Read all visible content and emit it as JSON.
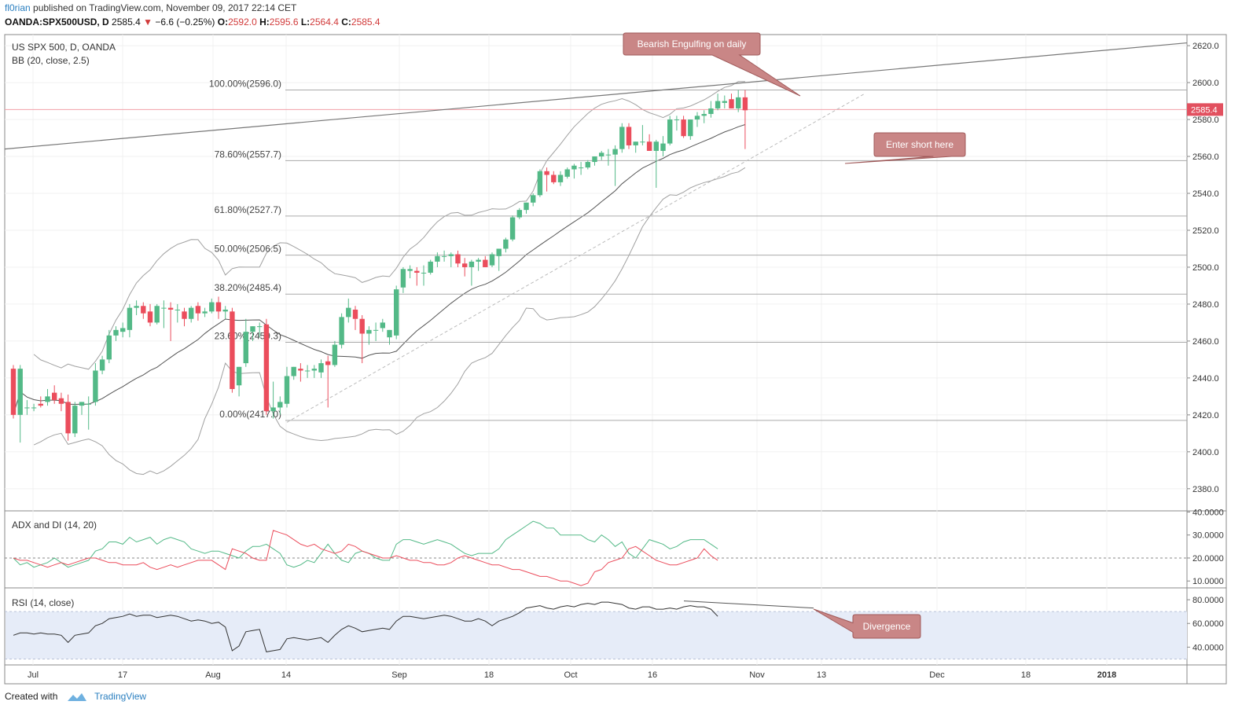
{
  "header": {
    "author": "fl0rian",
    "published_text": "published on TradingView.com, November 09, 2017 22:14 CET"
  },
  "symbol_line": {
    "symbol": "OANDA:SPX500USD, D",
    "last": "2585.4",
    "change": "−6.6 (−0.25%)",
    "o_label": "O:",
    "o": "2592.0",
    "h_label": "H:",
    "h": "2595.6",
    "l_label": "L:",
    "l": "2564.4",
    "c_label": "C:",
    "c": "2585.4"
  },
  "footer": {
    "created_with": "Created with",
    "brand": "TradingView"
  },
  "colors": {
    "bull": "#53b987",
    "bear": "#eb4d5c",
    "bb": "#a0a0a0",
    "basis": "#555555",
    "fib": "#aaaaaa",
    "callout": "#c98686",
    "adx": "#eb4d5c",
    "di": "#53b987",
    "rsi": "#333333",
    "rsi_band": "#e6ecf8"
  },
  "chart_data": [
    {
      "type": "candlestick",
      "title": "US SPX 500, D, OANDA",
      "indicator_label": "BB (20, close, 2.5)",
      "x_tick_labels": [
        "Jul",
        "17",
        "Aug",
        "14",
        "Sep",
        "18",
        "Oct",
        "16",
        "Nov",
        "13",
        "Dec",
        "18",
        "2018"
      ],
      "y_tick_labels": [
        "2620.0",
        "2600.0",
        "2580.0",
        "2560.0",
        "2540.0",
        "2520.0",
        "2500.0",
        "2480.0",
        "2460.0",
        "2440.0",
        "2420.0",
        "2400.0",
        "2380.0"
      ],
      "ylim": [
        2368,
        2626
      ],
      "last_price_label": "2585.4",
      "candles": [
        [
          2445,
          2447,
          2418,
          2420
        ],
        [
          2420,
          2447,
          2405,
          2445
        ],
        [
          2424,
          2428,
          2420,
          2424
        ],
        [
          2424,
          2426,
          2422,
          2424
        ],
        [
          2426,
          2430,
          2424,
          2425
        ],
        [
          2427,
          2434,
          2425,
          2430
        ],
        [
          2432,
          2436,
          2426,
          2428
        ],
        [
          2429,
          2432,
          2422,
          2426
        ],
        [
          2427,
          2431,
          2406,
          2410
        ],
        [
          2410,
          2427,
          2408,
          2425
        ],
        [
          2425,
          2427,
          2420,
          2427
        ],
        [
          2426,
          2430,
          2412,
          2426
        ],
        [
          2427,
          2448,
          2425,
          2444
        ],
        [
          2444,
          2452,
          2442,
          2450
        ],
        [
          2450,
          2466,
          2448,
          2463
        ],
        [
          2463,
          2468,
          2460,
          2466
        ],
        [
          2465,
          2470,
          2462,
          2467
        ],
        [
          2466,
          2480,
          2462,
          2478
        ],
        [
          2478,
          2482,
          2474,
          2479
        ],
        [
          2479,
          2481,
          2472,
          2475
        ],
        [
          2476,
          2480,
          2468,
          2470
        ],
        [
          2470,
          2480,
          2469,
          2479
        ],
        [
          2478,
          2482,
          2467,
          2478
        ],
        [
          2478,
          2481,
          2460,
          2477
        ],
        [
          2477,
          2480,
          2470,
          2477
        ],
        [
          2476,
          2478,
          2468,
          2472
        ],
        [
          2472,
          2479,
          2470,
          2478
        ],
        [
          2479,
          2481,
          2471,
          2475
        ],
        [
          2475,
          2478,
          2473,
          2476
        ],
        [
          2476,
          2483,
          2475,
          2481
        ],
        [
          2481,
          2484,
          2472,
          2476
        ],
        [
          2476,
          2479,
          2472,
          2477
        ],
        [
          2476,
          2478,
          2432,
          2434
        ],
        [
          2436,
          2446,
          2430,
          2446
        ],
        [
          2448,
          2472,
          2446,
          2465
        ],
        [
          2465,
          2468,
          2460,
          2468
        ],
        [
          2468,
          2470,
          2462,
          2468
        ],
        [
          2469,
          2472,
          2420,
          2422
        ],
        [
          2422,
          2438,
          2418,
          2424
        ],
        [
          2424,
          2430,
          2420,
          2427
        ],
        [
          2426,
          2446,
          2424,
          2441
        ],
        [
          2441,
          2446,
          2439,
          2446
        ],
        [
          2445,
          2448,
          2438,
          2444
        ],
        [
          2444,
          2447,
          2440,
          2444
        ],
        [
          2444,
          2447,
          2440,
          2445
        ],
        [
          2443,
          2450,
          2440,
          2448
        ],
        [
          2449,
          2452,
          2424,
          2447
        ],
        [
          2447,
          2460,
          2446,
          2458
        ],
        [
          2458,
          2475,
          2456,
          2473
        ],
        [
          2473,
          2483,
          2470,
          2478
        ],
        [
          2477,
          2479,
          2466,
          2472
        ],
        [
          2472,
          2474,
          2448,
          2464
        ],
        [
          2464,
          2468,
          2458,
          2466
        ],
        [
          2466,
          2470,
          2460,
          2466
        ],
        [
          2467,
          2472,
          2465,
          2470
        ],
        [
          2462,
          2466,
          2458,
          2466
        ],
        [
          2463,
          2490,
          2461,
          2488
        ],
        [
          2489,
          2500,
          2486,
          2499
        ],
        [
          2498,
          2501,
          2494,
          2499
        ],
        [
          2498,
          2500,
          2490,
          2497
        ],
        [
          2497,
          2501,
          2490,
          2497
        ],
        [
          2497,
          2504,
          2496,
          2503
        ],
        [
          2503,
          2508,
          2500,
          2506
        ],
        [
          2506,
          2509,
          2503,
          2506
        ],
        [
          2506,
          2508,
          2500,
          2507
        ],
        [
          2507,
          2509,
          2500,
          2502
        ],
        [
          2502,
          2505,
          2495,
          2500
        ],
        [
          2500,
          2504,
          2490,
          2503
        ],
        [
          2503,
          2505,
          2498,
          2504
        ],
        [
          2504,
          2506,
          2500,
          2500
        ],
        [
          2501,
          2508,
          2500,
          2507
        ],
        [
          2506,
          2510,
          2498,
          2510
        ],
        [
          2510,
          2516,
          2508,
          2515
        ],
        [
          2515,
          2528,
          2514,
          2527
        ],
        [
          2527,
          2532,
          2526,
          2531
        ],
        [
          2531,
          2535,
          2529,
          2535
        ],
        [
          2535,
          2540,
          2533,
          2539
        ],
        [
          2539,
          2553,
          2538,
          2552
        ],
        [
          2552,
          2554,
          2541,
          2550
        ],
        [
          2550,
          2552,
          2545,
          2546
        ],
        [
          2546,
          2552,
          2544,
          2550
        ],
        [
          2549,
          2554,
          2548,
          2553
        ],
        [
          2553,
          2556,
          2548,
          2555
        ],
        [
          2554,
          2557,
          2550,
          2554
        ],
        [
          2554,
          2558,
          2553,
          2557
        ],
        [
          2557,
          2560,
          2555,
          2560
        ],
        [
          2560,
          2563,
          2558,
          2562
        ],
        [
          2561,
          2564,
          2555,
          2561
        ],
        [
          2561,
          2566,
          2544,
          2564
        ],
        [
          2564,
          2578,
          2562,
          2576
        ],
        [
          2576,
          2578,
          2564,
          2566
        ],
        [
          2566,
          2568,
          2562,
          2568
        ],
        [
          2568,
          2577,
          2566,
          2568
        ],
        [
          2568,
          2572,
          2563,
          2563
        ],
        [
          2563,
          2569,
          2543,
          2568
        ],
        [
          2563,
          2571,
          2560,
          2567
        ],
        [
          2567,
          2582,
          2566,
          2580
        ],
        [
          2580,
          2582,
          2574,
          2580
        ],
        [
          2580,
          2582,
          2570,
          2571
        ],
        [
          2571,
          2580,
          2569,
          2580
        ],
        [
          2580,
          2584,
          2576,
          2582
        ],
        [
          2582,
          2585,
          2578,
          2583
        ],
        [
          2583,
          2590,
          2581,
          2586
        ],
        [
          2586,
          2594,
          2585,
          2590
        ],
        [
          2589,
          2593,
          2586,
          2590
        ],
        [
          2591,
          2594,
          2586,
          2586
        ],
        [
          2586,
          2596,
          2584,
          2592
        ],
        [
          2592,
          2596,
          2564,
          2585
        ]
      ]
    },
    {
      "type": "line",
      "title": "ADX and DI (14, 20)",
      "y_tick_labels": [
        "40.0000",
        "30.0000",
        "20.0000",
        "10.0000"
      ],
      "ylim": [
        7,
        40.5
      ],
      "series": [
        {
          "color": "#53b987",
          "values": [
            20,
            17,
            18,
            16,
            17,
            18,
            20,
            18,
            16,
            17,
            18,
            19,
            23,
            24,
            27,
            27,
            26,
            29,
            27,
            28,
            29,
            26,
            28,
            29,
            28,
            27,
            24,
            23,
            22,
            23,
            23,
            22,
            21,
            20,
            23,
            25,
            25,
            26,
            24,
            22,
            17,
            16,
            17,
            19,
            18,
            22,
            26,
            22,
            19,
            18,
            22,
            23,
            22,
            20,
            19,
            19,
            26,
            28,
            28,
            27,
            26,
            27,
            28,
            27,
            26,
            24,
            22,
            21,
            22,
            22,
            22,
            24,
            28,
            30,
            32,
            34,
            36,
            35,
            33,
            33,
            30,
            30,
            30,
            30,
            28,
            27,
            30,
            28,
            25,
            27,
            22,
            20,
            24,
            28,
            27,
            26,
            24,
            25,
            27,
            28,
            28,
            28,
            26,
            24
          ]
        },
        {
          "color": "#eb4d5c",
          "values": [
            20,
            19,
            19,
            18,
            17,
            16,
            17,
            18,
            17,
            18,
            19,
            20,
            20,
            19,
            18,
            18,
            17,
            17,
            17,
            18,
            16,
            15,
            16,
            17,
            16,
            17,
            18,
            19,
            19,
            19,
            17,
            15,
            24,
            23,
            22,
            20,
            19,
            19,
            32,
            31,
            30,
            28,
            26,
            25,
            26,
            24,
            23,
            22,
            23,
            26,
            25,
            23,
            22,
            21,
            20,
            20,
            21,
            20,
            19,
            19,
            18,
            18,
            17,
            17,
            18,
            20,
            21,
            20,
            19,
            18,
            17,
            17,
            16,
            15,
            15,
            14,
            13,
            12,
            12,
            11,
            10,
            10,
            9,
            8,
            9,
            14,
            15,
            18,
            19,
            20,
            24,
            25,
            23,
            21,
            19,
            18,
            17,
            17,
            18,
            19,
            20,
            24,
            21,
            19
          ]
        }
      ]
    },
    {
      "type": "line",
      "title": "RSI (14, close)",
      "y_tick_labels": [
        "80.0000",
        "60.0000",
        "40.0000"
      ],
      "ylim": [
        25,
        90
      ],
      "band": [
        30,
        70
      ],
      "series": [
        {
          "color": "#333333",
          "values": [
            50,
            52,
            52,
            51,
            52,
            51,
            51,
            50,
            44,
            50,
            51,
            52,
            58,
            60,
            64,
            65,
            66,
            68,
            66,
            67,
            67,
            65,
            66,
            67,
            66,
            64,
            62,
            63,
            62,
            60,
            61,
            57,
            37,
            41,
            53,
            54,
            55,
            36,
            37,
            38,
            47,
            48,
            47,
            46,
            47,
            48,
            44,
            50,
            55,
            58,
            56,
            53,
            54,
            55,
            56,
            55,
            62,
            66,
            66,
            65,
            64,
            65,
            66,
            67,
            66,
            64,
            62,
            62,
            64,
            62,
            58,
            62,
            64,
            66,
            69,
            73,
            74,
            75,
            73,
            72,
            74,
            75,
            74,
            76,
            77,
            76,
            78,
            78,
            77,
            76,
            73,
            72,
            74,
            74,
            72,
            72,
            73,
            72,
            74,
            75,
            74,
            74,
            72,
            66
          ]
        }
      ]
    }
  ],
  "fib_levels": [
    {
      "label": "100.00%(2596.0)",
      "value": 2596.0
    },
    {
      "label": "78.60%(2557.7)",
      "value": 2557.7
    },
    {
      "label": "61.80%(2527.7)",
      "value": 2527.7
    },
    {
      "label": "50.00%(2506.5)",
      "value": 2506.5
    },
    {
      "label": "38.20%(2485.4)",
      "value": 2485.4
    },
    {
      "label": "23.60%(2459.3)",
      "value": 2459.3
    },
    {
      "label": "0.00%(2417.0)",
      "value": 2417.0
    }
  ],
  "annotations": [
    {
      "text": "Bearish Engulfing on daily"
    },
    {
      "text": "Enter short here"
    },
    {
      "text": "Divergence"
    }
  ]
}
